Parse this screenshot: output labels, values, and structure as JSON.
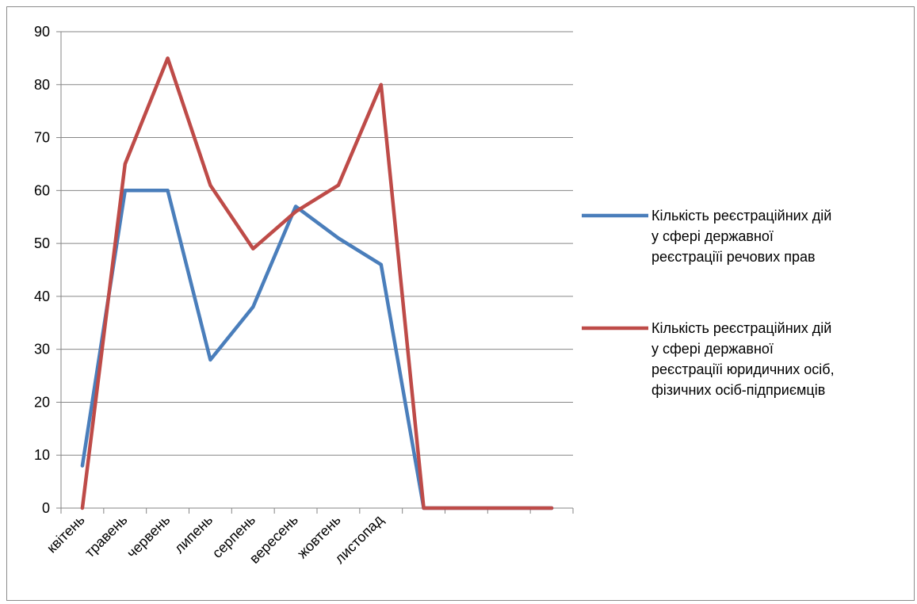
{
  "chart_data": {
    "type": "line",
    "categories": [
      "квітень",
      "травень",
      "червень",
      "липень",
      "серпень",
      "вересень",
      "жовтень",
      "листопад",
      "",
      "",
      "",
      ""
    ],
    "ylim": [
      0,
      90
    ],
    "yticks": [
      0,
      10,
      20,
      30,
      40,
      50,
      60,
      70,
      80,
      90
    ],
    "grid": true,
    "legend_position": "right",
    "series": [
      {
        "name_lines": [
          "Кількість реєстраційних дій",
          "у сфері державної",
          "реєстраціїі речових прав"
        ],
        "color": "#4a7ebb",
        "values": [
          8,
          60,
          60,
          28,
          38,
          57,
          51,
          46,
          0,
          0,
          0,
          0
        ]
      },
      {
        "name_lines": [
          "Кількість реєстраційних дій",
          "у сфері державної",
          "реєстраціїі юридичних осіб,",
          "фізичних осіб-підприємців"
        ],
        "color": "#be4b48",
        "values": [
          0,
          65,
          85,
          61,
          49,
          56,
          61,
          80,
          0,
          0,
          0,
          0
        ]
      }
    ]
  }
}
